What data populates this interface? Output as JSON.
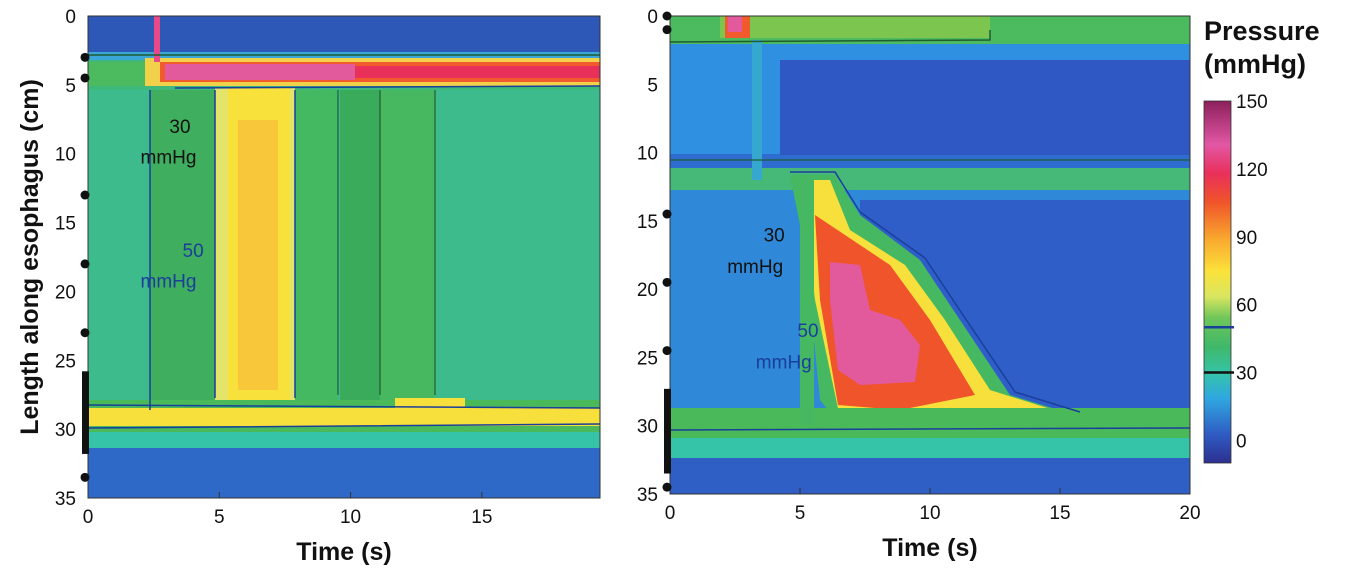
{
  "chart_data": [
    {
      "type": "heatmap",
      "xlabel": "Time (s)",
      "ylabel": "Length along esophagus (cm)",
      "xlim": [
        0,
        19.5
      ],
      "ylim": [
        35,
        0
      ],
      "x_ticks": [
        "0",
        "5",
        "10",
        "15"
      ],
      "y_ticks": [
        "0",
        "5",
        "10",
        "15",
        "20",
        "25",
        "30",
        "35"
      ],
      "sensor_markers_cm": [
        3,
        4.5,
        13,
        18,
        23,
        33.5
      ],
      "sphincter_bar_cm": [
        25.8,
        31.8
      ],
      "annotations": [
        {
          "text": "30",
          "color": "#111111",
          "x": 3.1,
          "y": 8.5
        },
        {
          "text": "mmHg",
          "color": "#111111",
          "x": 2.0,
          "y": 10.7
        },
        {
          "text": "50",
          "color": "#1a3f9a",
          "x": 3.6,
          "y": 17.5
        },
        {
          "text": "mmHg",
          "color": "#1a3f9a",
          "x": 2.0,
          "y": 19.7
        }
      ]
    },
    {
      "type": "heatmap",
      "xlabel": "Time (s)",
      "ylabel": "",
      "xlim": [
        0,
        20
      ],
      "ylim": [
        35,
        0
      ],
      "x_ticks": [
        "0",
        "5",
        "10",
        "15",
        "20"
      ],
      "y_ticks": [
        "0",
        "5",
        "10",
        "15",
        "20",
        "25",
        "30",
        "35"
      ],
      "sensor_markers_cm": [
        0,
        1,
        14.5,
        19.5,
        24.5,
        34.5
      ],
      "sphincter_bar_cm": [
        27.3,
        33.5
      ],
      "annotations": [
        {
          "text": "30",
          "color": "#111111",
          "x": 3.6,
          "y": 16.5
        },
        {
          "text": "mmHg",
          "color": "#111111",
          "x": 2.2,
          "y": 18.8
        },
        {
          "text": "50",
          "color": "#1a3f9a",
          "x": 4.9,
          "y": 23.5
        },
        {
          "text": "mmHg",
          "color": "#1a3f9a",
          "x": 3.3,
          "y": 25.8
        }
      ]
    }
  ],
  "colorbar": {
    "title_line1": "Pressure",
    "title_line2": "(mmHg)",
    "range": [
      -10,
      150
    ],
    "ticks": [
      "150",
      "120",
      "90",
      "60",
      "30",
      "0"
    ],
    "contour_marks": [
      {
        "value": 50,
        "color": "#1a3f9a"
      },
      {
        "value": 30,
        "color": "#111111"
      }
    ]
  }
}
